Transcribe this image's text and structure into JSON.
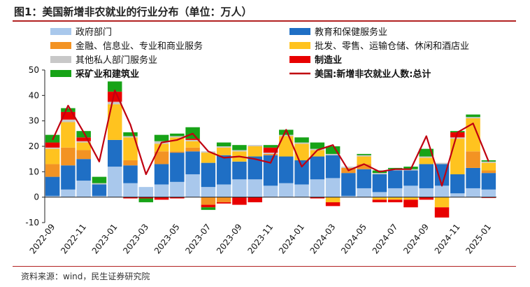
{
  "title": "图1：美国新增非农就业的行业分布（单位：万人）",
  "source": "资料来源：wind，民生证券研究院",
  "chart_data": {
    "type": "bar",
    "stacked": true,
    "ylim": [
      -10,
      50
    ],
    "yticks": [
      -10,
      0,
      10,
      20,
      30,
      40,
      50
    ],
    "grid": false,
    "legend_position": "top",
    "categories": [
      "2022-09",
      "2022-10",
      "2022-11",
      "2022-12",
      "2023-01",
      "2023-02",
      "2023-03",
      "2023-04",
      "2023-05",
      "2023-06",
      "2023-07",
      "2023-08",
      "2023-09",
      "2023-10",
      "2023-11",
      "2023-12",
      "2024-01",
      "2024-02",
      "2024-03",
      "2024-04",
      "2024-05",
      "2024-06",
      "2024-07",
      "2024-08",
      "2024-09",
      "2024-10",
      "2024-11",
      "2024-12",
      "2025-01"
    ],
    "xtick_labels": [
      "2022-09",
      "2022-11",
      "2023-01",
      "2023-03",
      "2023-05",
      "2023-07",
      "2023-09",
      "2023-11",
      "2024-01",
      "2024-03",
      "2024-05",
      "2024-07",
      "2024-09",
      "2024-11",
      "2025-01"
    ],
    "series": [
      {
        "name": "政府部门",
        "color": "#a9c8ec",
        "values": [
          0.5,
          3,
          6.5,
          0.5,
          12,
          5.5,
          4,
          5,
          6,
          9,
          4,
          5,
          7,
          7,
          4.5,
          5.5,
          5,
          7,
          7.5,
          0.5,
          3.5,
          2,
          3.5,
          4.5,
          3.5,
          4.5,
          1.5,
          3.5,
          3
        ]
      },
      {
        "name": "教育和保健服务业",
        "color": "#1f6fc5",
        "values": [
          7.5,
          9.5,
          8.5,
          4.5,
          10.5,
          7,
          0,
          8,
          11.5,
          9,
          9.5,
          11.5,
          7,
          9,
          12,
          10.5,
          9.5,
          9,
          9,
          9,
          7.5,
          7,
          7,
          6,
          9.5,
          8.5,
          7.5,
          8,
          6.5
        ]
      },
      {
        "name": "金融、信息业、专业和商业服务",
        "color": "#f39323",
        "values": [
          5,
          7,
          3.5,
          0,
          0,
          2,
          0,
          5,
          0.5,
          1.5,
          -3,
          -2,
          0,
          0,
          0.5,
          0,
          0,
          0,
          0,
          2,
          2,
          0,
          0,
          0,
          0,
          0,
          0,
          6.5,
          1
        ]
      },
      {
        "name": "批发、零售、运输仓储、休闲和酒店业",
        "color": "#ffc31f",
        "values": [
          6,
          10,
          3,
          0,
          14,
          9,
          0,
          3,
          5.5,
          2.5,
          4,
          3,
          4,
          4,
          0,
          8,
          6.5,
          2.5,
          -2,
          0,
          3,
          -1,
          -1,
          -1,
          2.5,
          -4,
          14,
          13,
          3
        ]
      },
      {
        "name": "其他私人部门服务业",
        "color": "#c8c8c8",
        "values": [
          0.5,
          1,
          0.5,
          0.5,
          1,
          0.5,
          0,
          1,
          0.5,
          0.5,
          0.5,
          0.5,
          0.5,
          0.5,
          0.5,
          0.5,
          0.5,
          0.5,
          0.5,
          0.5,
          0.5,
          0.5,
          0.5,
          0.5,
          0.5,
          0.5,
          0.5,
          0.5,
          0.5
        ]
      },
      {
        "name": "制造业",
        "color": "#e80000",
        "values": [
          2,
          3,
          1.5,
          0,
          4,
          -0.5,
          -0.5,
          -1,
          -0.5,
          0.5,
          -1,
          -0.5,
          -3,
          -2,
          2,
          0,
          0,
          -0.5,
          -1.5,
          0,
          0,
          -1,
          -1,
          -3,
          -1,
          -4,
          2,
          0,
          -0.3
        ]
      },
      {
        "name": "采矿业和建筑业",
        "color": "#17a317",
        "values": [
          3,
          1.5,
          2.5,
          2.5,
          4,
          1.5,
          -1.5,
          2.5,
          1,
          4.5,
          -1,
          1.5,
          2,
          0,
          1,
          2,
          2,
          2.5,
          3,
          0,
          0.5,
          1,
          0.5,
          1,
          3,
          0,
          0.5,
          1,
          0.5
        ]
      }
    ],
    "line": {
      "name": "美国:新增非农就业人数:总计",
      "color": "#c00010",
      "values": [
        22.5,
        36,
        25.5,
        14,
        42,
        28.5,
        9,
        21.5,
        22.5,
        25,
        18,
        15.5,
        16,
        15,
        13.5,
        26.5,
        12,
        18.5,
        20.5,
        10.5,
        13,
        10,
        11,
        11,
        24,
        4.5,
        25.5,
        29,
        14
      ]
    }
  },
  "legend": [
    {
      "label": "政府部门",
      "color": "#a9c8ec",
      "kind": "bar",
      "bold": false
    },
    {
      "label": "教育和保健服务业",
      "color": "#1f6fc5",
      "kind": "bar",
      "bold": false
    },
    {
      "label": "金融、信息业、专业和商业服务",
      "color": "#f39323",
      "kind": "bar",
      "bold": false
    },
    {
      "label": "批发、零售、运输仓储、休闲和酒店业",
      "color": "#ffc31f",
      "kind": "bar",
      "bold": false
    },
    {
      "label": "其他私人部门服务业",
      "color": "#c8c8c8",
      "kind": "bar",
      "bold": false
    },
    {
      "label": "制造业",
      "color": "#e80000",
      "kind": "bar",
      "bold": true
    },
    {
      "label": "采矿业和建筑业",
      "color": "#17a317",
      "kind": "bar",
      "bold": true
    },
    {
      "label": "美国:新增非农就业人数:总计",
      "color": "#c00010",
      "kind": "line",
      "bold": true
    }
  ]
}
